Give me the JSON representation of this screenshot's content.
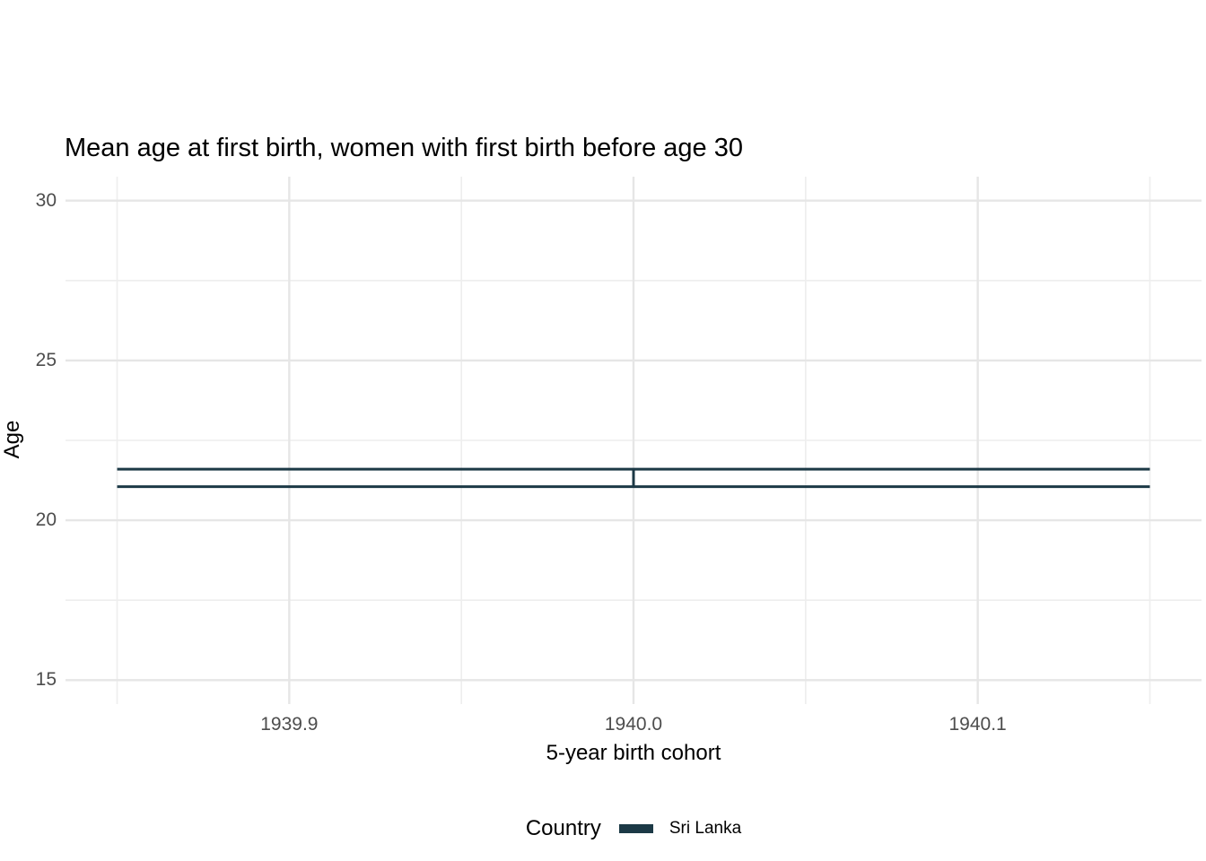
{
  "chart_data": {
    "type": "errorbar",
    "title": "Mean age at first birth, women with first birth before age 30",
    "xlabel": "5-year birth cohort",
    "ylabel": "Age",
    "xlim": [
      1939.835,
      1940.165
    ],
    "ylim": [
      14.25,
      30.75
    ],
    "x_ticks": [
      {
        "value": 1939.9,
        "label": "1939.9"
      },
      {
        "value": 1940.0,
        "label": "1940.0"
      },
      {
        "value": 1940.1,
        "label": "1940.1"
      }
    ],
    "x_minor_ticks": [
      1939.85,
      1939.95,
      1940.05,
      1940.15
    ],
    "y_ticks": [
      {
        "value": 15,
        "label": "15"
      },
      {
        "value": 20,
        "label": "20"
      },
      {
        "value": 25,
        "label": "25"
      },
      {
        "value": 30,
        "label": "30"
      }
    ],
    "y_minor_ticks": [
      17.5,
      22.5,
      27.5
    ],
    "grid": {
      "shown": true,
      "major_color": "#e6e6e6",
      "minor_color": "#eeeeee"
    },
    "legend": {
      "title": "Country",
      "position": "bottom",
      "entries": [
        {
          "label": "Sri Lanka",
          "color": "#1c3946"
        }
      ]
    },
    "series": [
      {
        "name": "Sri Lanka",
        "color": "#1c3946",
        "points": [
          {
            "x": 1940.0,
            "ymin": 21.05,
            "ymax": 21.6,
            "cap_xmin": 1939.85,
            "cap_xmax": 1940.15
          }
        ]
      }
    ],
    "text_colors": {
      "title": "#000000",
      "axis_titles": "#000000",
      "tick_labels": "#4d4d4d"
    },
    "background": "#ffffff"
  }
}
